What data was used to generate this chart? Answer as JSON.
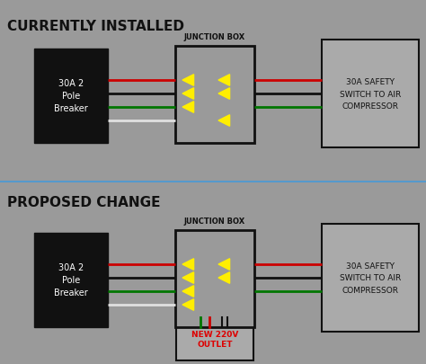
{
  "bg_color": "#9a9a9a",
  "title1": "CURRENTLY INSTALLED",
  "title2": "PROPOSED CHANGE",
  "junction_box_label": "JUNCTION BOX",
  "breaker_label": "30A 2\nPole\nBreaker",
  "safety_label": "30A SAFETY\nSWITCH TO AIR\nCOMPRESSOR",
  "outlet_label": "NEW 220V\nOUTLET",
  "wire_colors": [
    "#cc0000",
    "#111111",
    "#007700",
    "#e0e0e0"
  ],
  "wire_lw": 2.0,
  "arrow_color": "#ffee00",
  "box_ec": "#111111",
  "breaker_fc": "#111111",
  "device_fc": "#aaaaaa",
  "outlet_fc": "#aaaaaa",
  "outlet_label_color": "#dd0000",
  "divider_color": "#5599cc",
  "text_color": "#111111",
  "white_text": "#ffffff"
}
